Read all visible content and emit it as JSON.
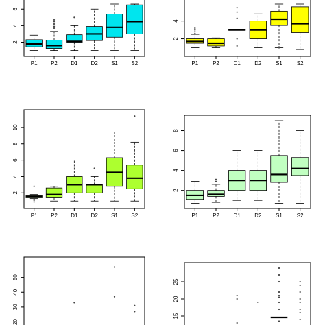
{
  "chart_data": [
    {
      "type": "boxplot",
      "position": "top-left",
      "fill": "#00e5ee",
      "categories": [
        "P1",
        "P2",
        "D1",
        "D2",
        "S1",
        "S2"
      ],
      "ylim": [
        0.8,
        6.6
      ],
      "yticks": [
        2,
        4,
        6
      ],
      "boxes": [
        {
          "lw": 1.0,
          "q1": 1.45,
          "med": 1.8,
          "q3": 2.3,
          "uw": 2.85,
          "outliers": []
        },
        {
          "lw": 1.0,
          "q1": 1.25,
          "med": 1.6,
          "q3": 2.25,
          "uw": 3.3,
          "outliers": [
            3.7,
            3.9,
            4.2,
            4.5,
            4.7
          ]
        },
        {
          "lw": 1.0,
          "q1": 2.0,
          "med": 2.1,
          "q3": 2.9,
          "uw": 4.0,
          "outliers": [
            5.0
          ]
        },
        {
          "lw": 1.0,
          "q1": 2.2,
          "med": 3.0,
          "q3": 3.9,
          "uw": 6.0,
          "outliers": []
        },
        {
          "lw": 1.0,
          "q1": 2.6,
          "med": 3.8,
          "q3": 5.4,
          "uw": 6.6,
          "outliers": []
        },
        {
          "lw": 1.0,
          "q1": 3.0,
          "med": 4.5,
          "q3": 6.5,
          "uw": 6.6,
          "outliers": []
        }
      ]
    },
    {
      "type": "boxplot",
      "position": "top-right",
      "fill": "#ffff00",
      "categories": [
        "P1",
        "P2",
        "D1",
        "D2",
        "S1",
        "S2"
      ],
      "ylim": [
        0.5,
        5.9
      ],
      "yticks": [
        2,
        4
      ],
      "boxes": [
        {
          "lw": 1.0,
          "q1": 1.5,
          "med": 1.7,
          "q3": 2.0,
          "uw": 2.5,
          "outliers": [
            2.6,
            2.8,
            3.0,
            3.2
          ]
        },
        {
          "lw": 1.0,
          "q1": 1.2,
          "med": 1.5,
          "q3": 2.0,
          "uw": 2.1,
          "outliers": []
        },
        {
          "lw": 3.0,
          "q1": 3.0,
          "med": 3.0,
          "q3": 3.0,
          "uw": 3.0,
          "outliers": [
            1.2,
            2.0,
            4.3,
            5.0,
            5.5
          ]
        },
        {
          "lw": 1.0,
          "q1": 2.0,
          "med": 3.0,
          "q3": 4.0,
          "uw": 4.8,
          "outliers": []
        },
        {
          "lw": 1.0,
          "q1": 3.5,
          "med": 4.2,
          "q3": 5.1,
          "uw": 5.9,
          "outliers": [
            1.0
          ]
        },
        {
          "lw": 0.8,
          "q1": 2.7,
          "med": 3.7,
          "q3": 5.6,
          "uw": 5.9,
          "outliers": []
        }
      ]
    },
    {
      "type": "boxplot",
      "position": "middle-left",
      "fill": "#adff2f",
      "categories": [
        "P1",
        "P2",
        "D1",
        "D2",
        "S1",
        "S2"
      ],
      "ylim": [
        0.6,
        11.5
      ],
      "yticks": [
        2,
        4,
        6,
        8,
        10
      ],
      "boxes": [
        {
          "lw": 1.3,
          "q1": 1.4,
          "med": 1.55,
          "q3": 1.65,
          "uw": 1.8,
          "outliers": [
            0.9,
            1.1,
            1.2,
            2.8
          ]
        },
        {
          "lw": 1.0,
          "q1": 1.4,
          "med": 1.8,
          "q3": 2.6,
          "uw": 2.8,
          "outliers": []
        },
        {
          "lw": 1.0,
          "q1": 2.0,
          "med": 3.0,
          "q3": 4.0,
          "uw": 6.0,
          "outliers": []
        },
        {
          "lw": 1.0,
          "q1": 2.0,
          "med": 3.0,
          "q3": 3.0,
          "uw": 4.0,
          "outliers": [
            5.0
          ]
        },
        {
          "lw": 1.0,
          "q1": 2.8,
          "med": 4.5,
          "q3": 6.3,
          "uw": 9.7,
          "outliers": []
        },
        {
          "lw": 1.0,
          "q1": 2.5,
          "med": 3.8,
          "q3": 5.4,
          "uw": 8.2,
          "outliers": [
            11.4
          ]
        }
      ]
    },
    {
      "type": "boxplot",
      "position": "middle-right",
      "fill": "#c1ffc1",
      "categories": [
        "P1",
        "P2",
        "D1",
        "D2",
        "S1",
        "S2"
      ],
      "ylim": [
        0.6,
        9.0
      ],
      "yticks": [
        2,
        4,
        6,
        8
      ],
      "boxes": [
        {
          "lw": 0.7,
          "q1": 1.1,
          "med": 1.5,
          "q3": 2.0,
          "uw": 2.9,
          "outliers": []
        },
        {
          "lw": 0.8,
          "q1": 1.4,
          "med": 1.6,
          "q3": 2.0,
          "uw": 2.6,
          "outliers": [
            2.9,
            3.1
          ]
        },
        {
          "lw": 1.0,
          "q1": 2.0,
          "med": 3.0,
          "q3": 4.0,
          "uw": 6.0,
          "outliers": []
        },
        {
          "lw": 1.0,
          "q1": 2.0,
          "med": 3.0,
          "q3": 4.0,
          "uw": 6.0,
          "outliers": []
        },
        {
          "lw": 0.7,
          "q1": 2.8,
          "med": 3.6,
          "q3": 5.5,
          "uw": 9.0,
          "outliers": []
        },
        {
          "lw": 0.7,
          "q1": 3.5,
          "med": 4.2,
          "q3": 5.3,
          "uw": 8.0,
          "outliers": []
        }
      ]
    },
    {
      "type": "boxplot",
      "position": "bottom-left",
      "fill": "#ffffff",
      "ylim": [
        17,
        60
      ],
      "yticks": [
        20,
        30,
        40,
        50
      ],
      "points": [
        {
          "slot": 3,
          "y": 33
        },
        {
          "slot": 5,
          "y": 57
        },
        {
          "slot": 5,
          "y": 37
        },
        {
          "slot": 6,
          "y": 31
        },
        {
          "slot": 6,
          "y": 27
        }
      ]
    },
    {
      "type": "boxplot",
      "position": "bottom-right",
      "fill": "#ffffff",
      "ylim": [
        12,
        29
      ],
      "yticks": [
        15,
        20,
        25
      ],
      "medians": [
        {
          "slot": 5,
          "y": 14.6
        }
      ],
      "points": [
        {
          "slot": 3,
          "y": 21
        },
        {
          "slot": 3,
          "y": 20
        },
        {
          "slot": 3,
          "y": 13
        },
        {
          "slot": 4,
          "y": 19
        },
        {
          "slot": 5,
          "y": 29
        },
        {
          "slot": 5,
          "y": 27
        },
        {
          "slot": 5,
          "y": 25
        },
        {
          "slot": 5,
          "y": 22
        },
        {
          "slot": 5,
          "y": 21
        },
        {
          "slot": 5,
          "y": 20.5
        },
        {
          "slot": 5,
          "y": 19
        },
        {
          "slot": 5,
          "y": 17
        },
        {
          "slot": 5,
          "y": 13.5
        },
        {
          "slot": 6,
          "y": 25
        },
        {
          "slot": 6,
          "y": 24
        },
        {
          "slot": 6,
          "y": 22
        },
        {
          "slot": 6,
          "y": 20
        },
        {
          "slot": 6,
          "y": 19
        },
        {
          "slot": 6,
          "y": 17
        },
        {
          "slot": 6,
          "y": 16
        },
        {
          "slot": 6,
          "y": 14
        }
      ]
    }
  ]
}
